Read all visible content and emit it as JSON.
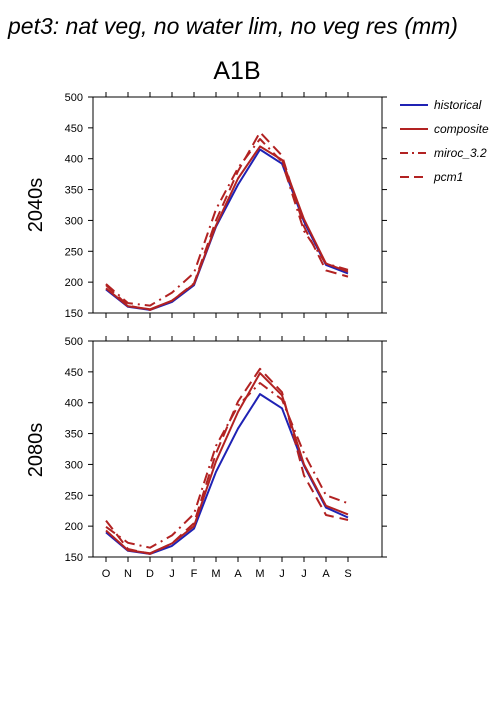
{
  "figure": {
    "title": "pet3: nat veg, no water lim, no veg res (mm)",
    "scenario": "A1B"
  },
  "legend": [
    {
      "name": "historical",
      "color": "#1f22b4",
      "dash": "solid"
    },
    {
      "name": "composite",
      "color": "#b22222",
      "dash": "solid"
    },
    {
      "name": "miroc_3.2",
      "color": "#b22222",
      "dash": "dashdot"
    },
    {
      "name": "pcm1",
      "color": "#b22222",
      "dash": "dashed"
    }
  ],
  "chart_data": [
    {
      "type": "line",
      "row_label": "2040s",
      "categories": [
        "O",
        "N",
        "D",
        "J",
        "F",
        "M",
        "A",
        "M",
        "J",
        "J",
        "A",
        "S"
      ],
      "ylim": [
        150,
        500
      ],
      "yticks": [
        150,
        200,
        250,
        300,
        350,
        400,
        450,
        500
      ],
      "show_x_labels": false,
      "series": [
        {
          "name": "historical",
          "values": [
            188,
            160,
            155,
            168,
            195,
            290,
            358,
            415,
            392,
            298,
            228,
            214
          ]
        },
        {
          "name": "composite",
          "values": [
            190,
            161,
            156,
            170,
            197,
            292,
            368,
            420,
            398,
            302,
            230,
            217
          ]
        },
        {
          "name": "miroc_3.2",
          "values": [
            197,
            166,
            162,
            183,
            215,
            318,
            385,
            432,
            395,
            283,
            230,
            220
          ]
        },
        {
          "name": "pcm1",
          "values": [
            195,
            162,
            155,
            170,
            198,
            300,
            380,
            443,
            405,
            290,
            219,
            209
          ]
        }
      ]
    },
    {
      "type": "line",
      "row_label": "2080s",
      "categories": [
        "O",
        "N",
        "D",
        "J",
        "F",
        "M",
        "A",
        "M",
        "J",
        "J",
        "A",
        "S"
      ],
      "ylim": [
        150,
        500
      ],
      "yticks": [
        150,
        200,
        250,
        300,
        350,
        400,
        450,
        500
      ],
      "show_x_labels": true,
      "series": [
        {
          "name": "historical",
          "values": [
            190,
            160,
            155,
            168,
            196,
            288,
            358,
            414,
            391,
            298,
            230,
            214
          ]
        },
        {
          "name": "composite",
          "values": [
            193,
            161,
            156,
            172,
            200,
            305,
            385,
            448,
            412,
            300,
            233,
            219
          ]
        },
        {
          "name": "miroc_3.2",
          "values": [
            199,
            173,
            165,
            185,
            220,
            330,
            395,
            432,
            405,
            318,
            250,
            237
          ]
        },
        {
          "name": "pcm1",
          "values": [
            209,
            163,
            155,
            172,
            205,
            318,
            402,
            455,
            417,
            282,
            218,
            210
          ]
        }
      ]
    }
  ]
}
